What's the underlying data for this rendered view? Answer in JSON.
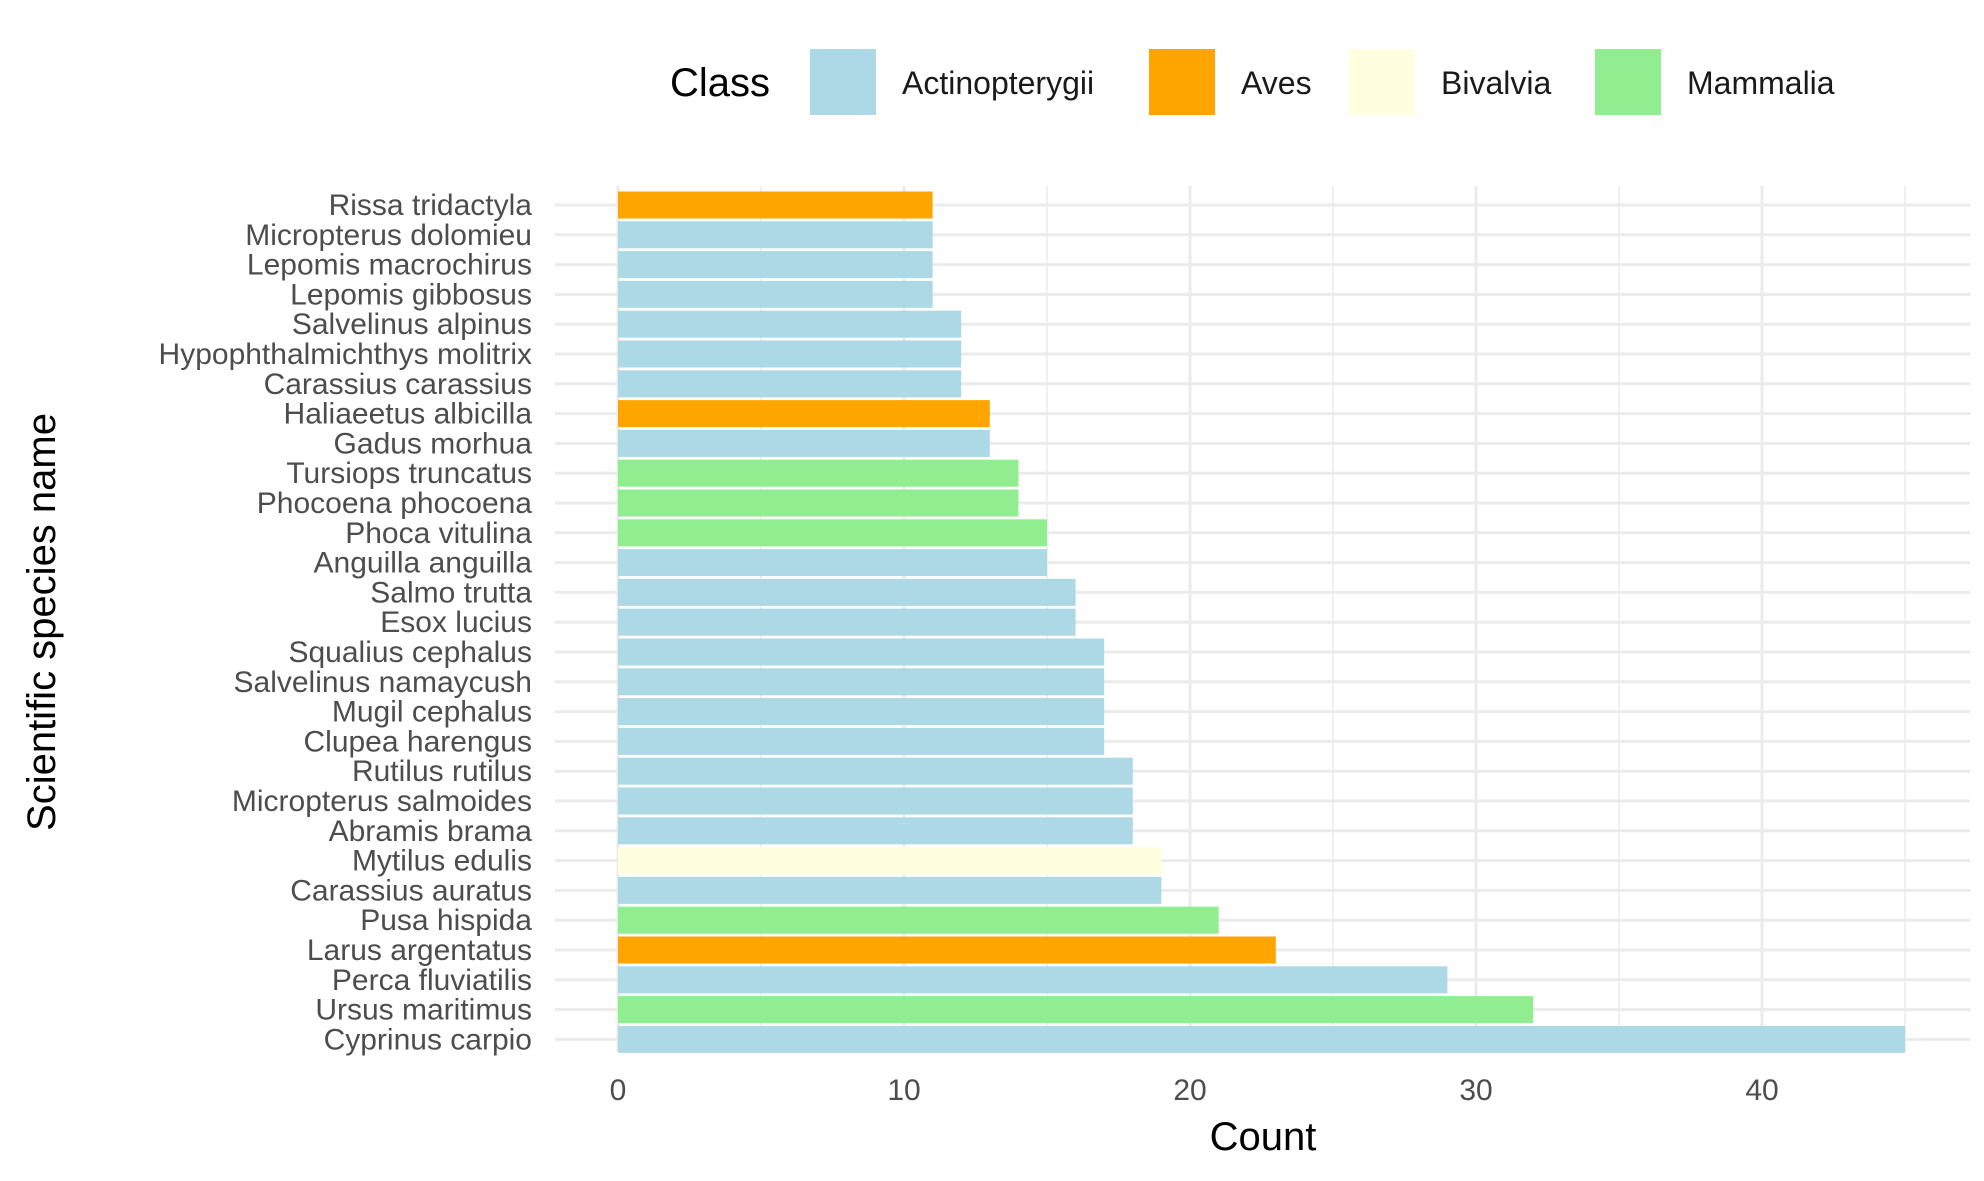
{
  "chart_data": {
    "type": "bar",
    "orientation": "horizontal",
    "xlabel": "Count",
    "ylabel": "Scientific species name",
    "xlim": [
      0,
      45
    ],
    "x_ticks": [
      0,
      10,
      20,
      30,
      40
    ],
    "grid": true,
    "legend": {
      "title": "Class",
      "placement": "top",
      "entries": [
        {
          "name": "Actinopterygii",
          "color": "#ADD8E6"
        },
        {
          "name": "Aves",
          "color": "#FFA500"
        },
        {
          "name": "Bivalvia",
          "color": "#FFFFE0"
        },
        {
          "name": "Mammalia",
          "color": "#90EE90"
        }
      ]
    },
    "bars": [
      {
        "species": "Rissa tridactyla",
        "count": 11,
        "class": "Aves"
      },
      {
        "species": "Micropterus dolomieu",
        "count": 11,
        "class": "Actinopterygii"
      },
      {
        "species": "Lepomis macrochirus",
        "count": 11,
        "class": "Actinopterygii"
      },
      {
        "species": "Lepomis gibbosus",
        "count": 11,
        "class": "Actinopterygii"
      },
      {
        "species": "Salvelinus alpinus",
        "count": 12,
        "class": "Actinopterygii"
      },
      {
        "species": "Hypophthalmichthys molitrix",
        "count": 12,
        "class": "Actinopterygii"
      },
      {
        "species": "Carassius carassius",
        "count": 12,
        "class": "Actinopterygii"
      },
      {
        "species": "Haliaeetus albicilla",
        "count": 13,
        "class": "Aves"
      },
      {
        "species": "Gadus morhua",
        "count": 13,
        "class": "Actinopterygii"
      },
      {
        "species": "Tursiops truncatus",
        "count": 14,
        "class": "Mammalia"
      },
      {
        "species": "Phocoena phocoena",
        "count": 14,
        "class": "Mammalia"
      },
      {
        "species": "Phoca vitulina",
        "count": 15,
        "class": "Mammalia"
      },
      {
        "species": "Anguilla anguilla",
        "count": 15,
        "class": "Actinopterygii"
      },
      {
        "species": "Salmo trutta",
        "count": 16,
        "class": "Actinopterygii"
      },
      {
        "species": "Esox lucius",
        "count": 16,
        "class": "Actinopterygii"
      },
      {
        "species": "Squalius cephalus",
        "count": 17,
        "class": "Actinopterygii"
      },
      {
        "species": "Salvelinus namaycush",
        "count": 17,
        "class": "Actinopterygii"
      },
      {
        "species": "Mugil cephalus",
        "count": 17,
        "class": "Actinopterygii"
      },
      {
        "species": "Clupea harengus",
        "count": 17,
        "class": "Actinopterygii"
      },
      {
        "species": "Rutilus rutilus",
        "count": 18,
        "class": "Actinopterygii"
      },
      {
        "species": "Micropterus salmoides",
        "count": 18,
        "class": "Actinopterygii"
      },
      {
        "species": "Abramis brama",
        "count": 18,
        "class": "Actinopterygii"
      },
      {
        "species": "Mytilus edulis",
        "count": 19,
        "class": "Bivalvia"
      },
      {
        "species": "Carassius auratus",
        "count": 19,
        "class": "Actinopterygii"
      },
      {
        "species": "Pusa hispida",
        "count": 21,
        "class": "Mammalia"
      },
      {
        "species": "Larus argentatus",
        "count": 23,
        "class": "Aves"
      },
      {
        "species": "Perca fluviatilis",
        "count": 29,
        "class": "Actinopterygii"
      },
      {
        "species": "Ursus maritimus",
        "count": 32,
        "class": "Mammalia"
      },
      {
        "species": "Cyprinus carpio",
        "count": 45,
        "class": "Actinopterygii"
      }
    ]
  }
}
